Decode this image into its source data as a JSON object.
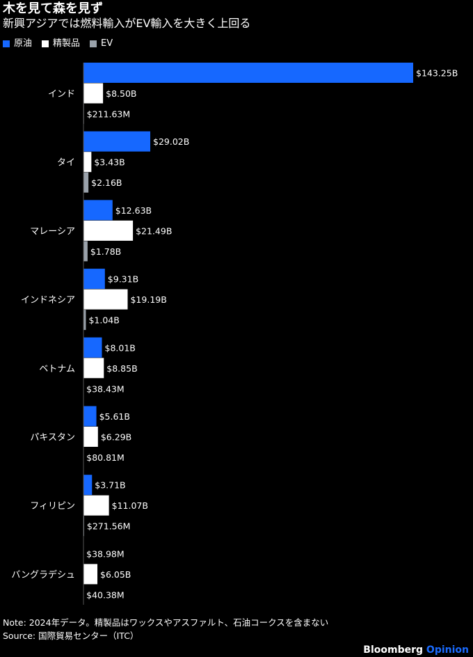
{
  "title": "木を見て森を見ず",
  "subtitle": "新興アジアでは燃料輸入がEV輸入を大きく上回る",
  "colors": {
    "crude": "#1668ff",
    "refined": "#ffffff",
    "ev": "#9aa2ab"
  },
  "chart_data": {
    "type": "bar",
    "orientation": "horizontal",
    "unit": "USD billions",
    "categories": [
      "インド",
      "タイ",
      "マレーシア",
      "インドネシア",
      "ベトナム",
      "パキスタン",
      "フィリピン",
      "バングラデシュ"
    ],
    "series": [
      {
        "name": "原油",
        "values": [
          143.25,
          29.02,
          12.63,
          9.31,
          8.01,
          5.61,
          3.71,
          0.03898
        ],
        "labels": [
          "$143.25B",
          "$29.02B",
          "$12.63B",
          "$9.31B",
          "$8.01B",
          "$5.61B",
          "$3.71B",
          "$38.98M"
        ]
      },
      {
        "name": "精製品",
        "values": [
          8.5,
          3.43,
          21.49,
          19.19,
          8.85,
          6.29,
          11.07,
          6.05
        ],
        "labels": [
          "$8.50B",
          "$3.43B",
          "$21.49B",
          "$19.19B",
          "$8.85B",
          "$6.29B",
          "$11.07B",
          "$6.05B"
        ]
      },
      {
        "name": "EV",
        "values": [
          0.21163,
          2.16,
          1.78,
          1.04,
          0.03843,
          0.08081,
          0.27156,
          0.04038
        ],
        "labels": [
          "$211.63M",
          "$2.16B",
          "$1.78B",
          "$1.04B",
          "$38.43M",
          "$80.81M",
          "$271.56M",
          "$40.38M"
        ]
      }
    ],
    "xlim": [
      0,
      143.25
    ],
    "legend_position": "top-left",
    "grid": false
  },
  "footer": {
    "note": "Note: 2024年データ。精製品はワックスやアスファルト、石油コークスを含まない",
    "source": "Source: 国際貿易センター（ITC）",
    "brand_main": "Bloomberg",
    "brand_sub": "Opinion"
  }
}
